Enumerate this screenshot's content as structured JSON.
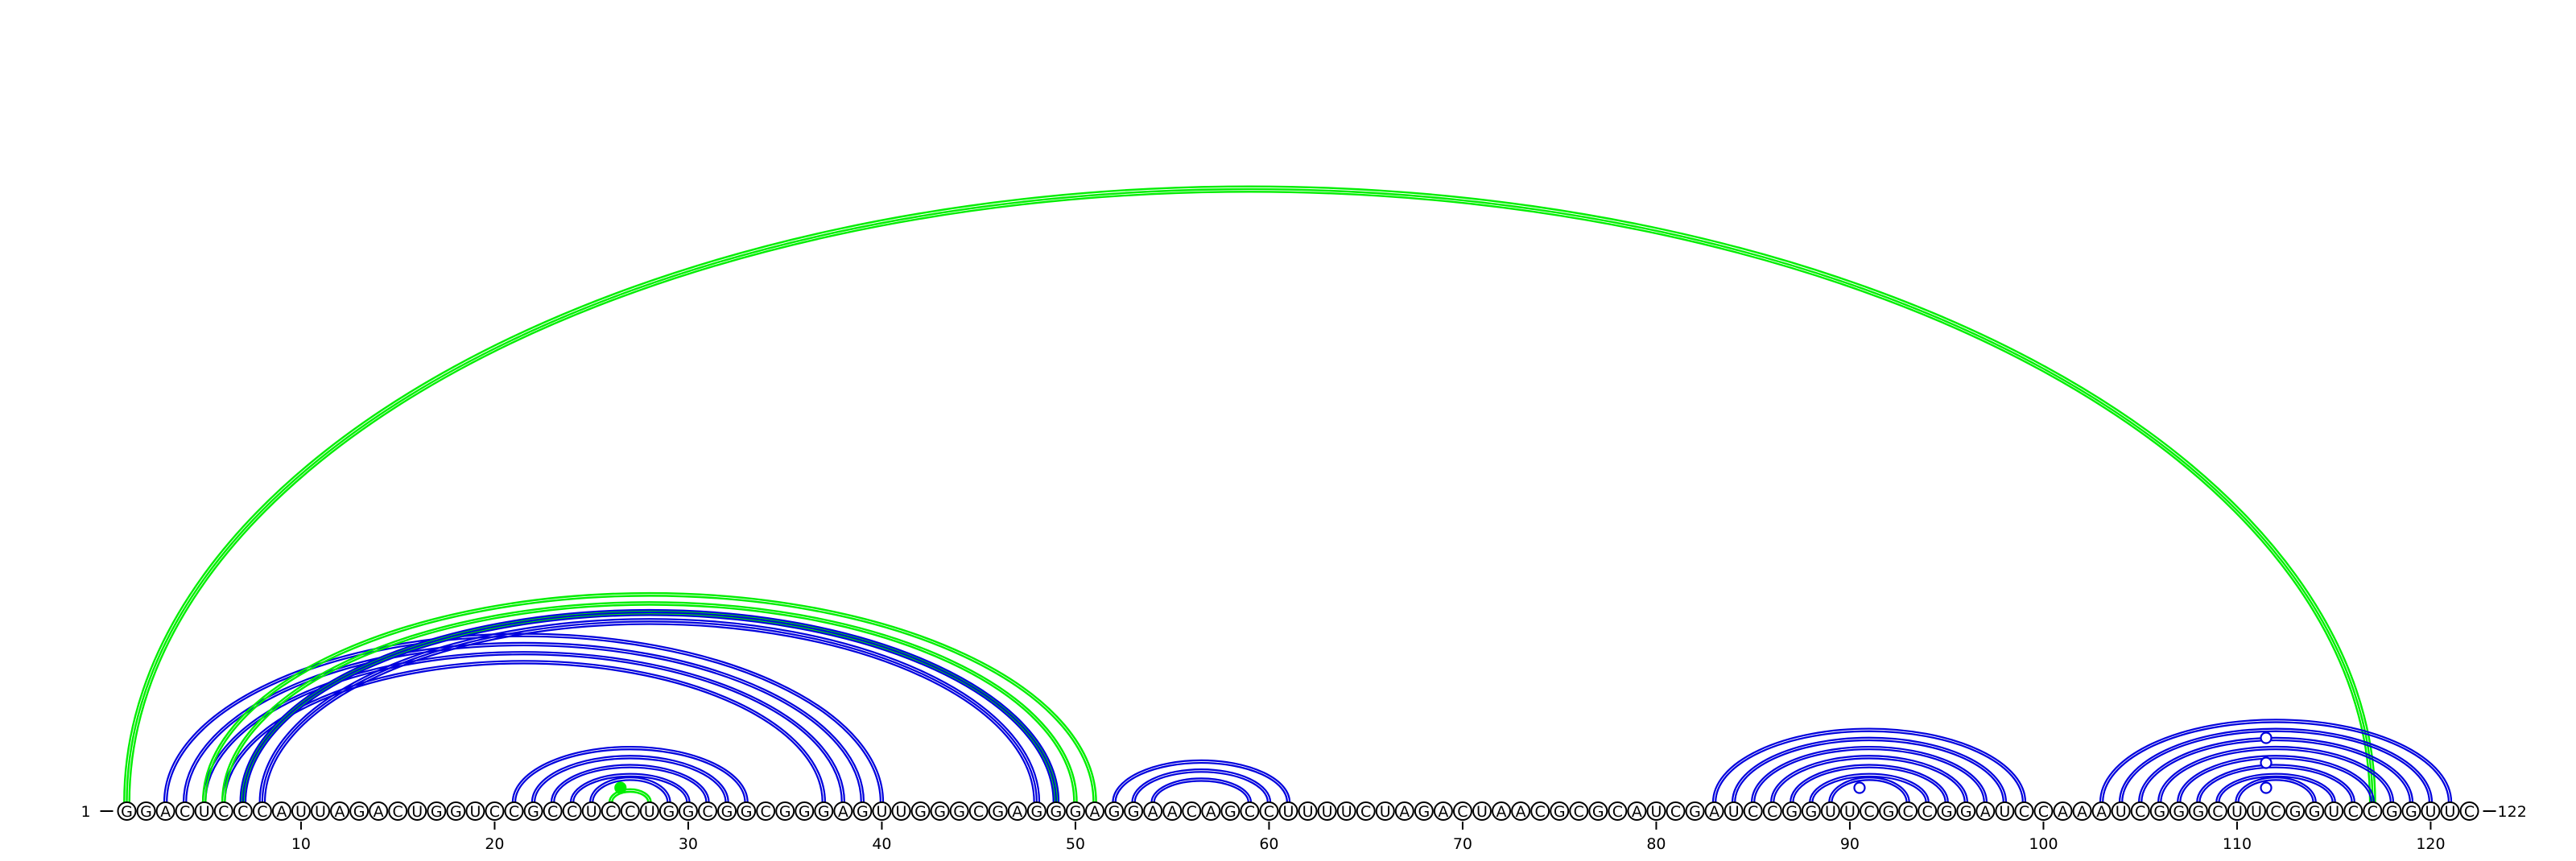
{
  "sequence": "GGACUCCCAUUAGACUGGUCCGCCUCCUGGCGGCGGGAGUUGGGCGAGGGAGGAACAGCCUUUUCUAGACUAACGCGCAUCGAUCCGGUUCGCCGGAUCCAAAUCGGGCUUCGGUCCGGUUC",
  "start_label": "1",
  "end_label": "122",
  "ticks": [
    10,
    20,
    30,
    40,
    50,
    60,
    70,
    80,
    90,
    100,
    110,
    120
  ],
  "colors": {
    "blue": "#0000dd",
    "green": "#00ee00"
  },
  "helices": [
    {
      "color": "green",
      "pairs": [
        [
          1,
          117
        ]
      ],
      "lines": 3
    },
    {
      "color": "blue",
      "pairs": [
        [
          3,
          40
        ],
        [
          4,
          39
        ],
        [
          5,
          38
        ],
        [
          6,
          37
        ]
      ],
      "lines": 2
    },
    {
      "color": "green",
      "pairs": [
        [
          5,
          51
        ],
        [
          6,
          50
        ],
        [
          7,
          49
        ]
      ],
      "lines": 2
    },
    {
      "color": "blue",
      "pairs": [
        [
          7,
          49
        ],
        [
          8,
          48
        ]
      ],
      "lines": 3
    },
    {
      "color": "blue",
      "pairs": [
        [
          21,
          33
        ],
        [
          22,
          32
        ],
        [
          23,
          31
        ],
        [
          24,
          30
        ],
        [
          25,
          29
        ]
      ],
      "lines": 2
    },
    {
      "color": "green",
      "pairs": [
        [
          26,
          28
        ]
      ],
      "lines": 2
    },
    {
      "color": "blue",
      "pairs": [
        [
          52,
          61
        ],
        [
          53,
          60
        ],
        [
          54,
          59
        ]
      ],
      "lines": 2
    },
    {
      "color": "blue",
      "pairs": [
        [
          83,
          99
        ],
        [
          84,
          98
        ],
        [
          85,
          97
        ],
        [
          86,
          96
        ],
        [
          87,
          95
        ],
        [
          88,
          94
        ],
        [
          89,
          93
        ]
      ],
      "lines": 2
    },
    {
      "color": "blue",
      "pairs": [
        [
          103,
          121
        ],
        [
          104,
          120
        ],
        [
          105,
          119
        ],
        [
          106,
          118
        ],
        [
          107,
          117
        ],
        [
          108,
          116
        ],
        [
          109,
          115
        ],
        [
          110,
          114
        ]
      ],
      "lines": 2
    }
  ],
  "markers": [
    {
      "pos": 26,
      "color": "green",
      "fill": true,
      "height": 0.0
    },
    {
      "pos": 90,
      "color": "blue",
      "fill": false,
      "height": 0.0
    },
    {
      "pos": 111,
      "color": "blue",
      "fill": false,
      "height": 0.0
    },
    {
      "pos": 111,
      "color": "blue",
      "fill": false,
      "height": 1.0
    },
    {
      "pos": 111,
      "color": "blue",
      "fill": false,
      "height": 2.0
    }
  ]
}
